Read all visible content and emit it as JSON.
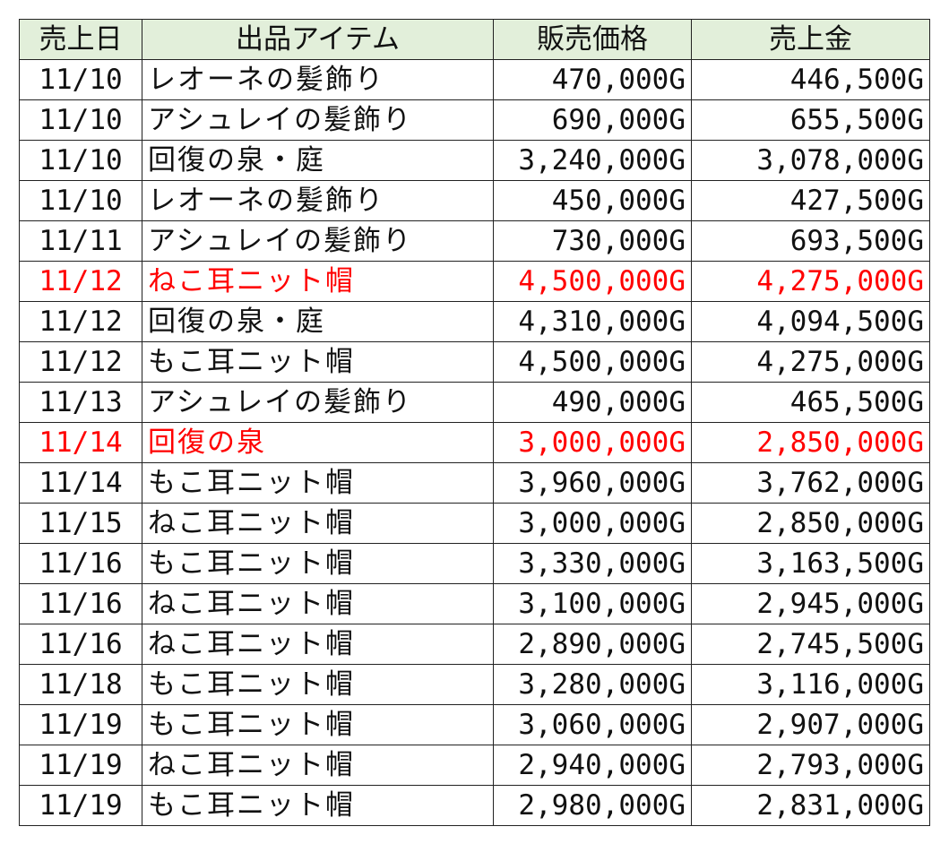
{
  "table": {
    "headers": [
      "売上日",
      "出品アイテム",
      "販売価格",
      "売上金"
    ],
    "highlight_color": "#ff0000",
    "header_bg": "#e2efda",
    "rows": [
      {
        "date": "11/10",
        "item": "レオーネの髪飾り",
        "price": "470,000G",
        "sales": "446,500G",
        "highlight": false
      },
      {
        "date": "11/10",
        "item": "アシュレイの髪飾り",
        "price": "690,000G",
        "sales": "655,500G",
        "highlight": false
      },
      {
        "date": "11/10",
        "item": "回復の泉・庭",
        "price": "3,240,000G",
        "sales": "3,078,000G",
        "highlight": false
      },
      {
        "date": "11/10",
        "item": "レオーネの髪飾り",
        "price": "450,000G",
        "sales": "427,500G",
        "highlight": false
      },
      {
        "date": "11/11",
        "item": "アシュレイの髪飾り",
        "price": "730,000G",
        "sales": "693,500G",
        "highlight": false
      },
      {
        "date": "11/12",
        "item": "ねこ耳ニット帽",
        "price": "4,500,000G",
        "sales": "4,275,000G",
        "highlight": true
      },
      {
        "date": "11/12",
        "item": "回復の泉・庭",
        "price": "4,310,000G",
        "sales": "4,094,500G",
        "highlight": false
      },
      {
        "date": "11/12",
        "item": "もこ耳ニット帽",
        "price": "4,500,000G",
        "sales": "4,275,000G",
        "highlight": false
      },
      {
        "date": "11/13",
        "item": "アシュレイの髪飾り",
        "price": "490,000G",
        "sales": "465,500G",
        "highlight": false
      },
      {
        "date": "11/14",
        "item": "回復の泉",
        "price": "3,000,000G",
        "sales": "2,850,000G",
        "highlight": true
      },
      {
        "date": "11/14",
        "item": "もこ耳ニット帽",
        "price": "3,960,000G",
        "sales": "3,762,000G",
        "highlight": false
      },
      {
        "date": "11/15",
        "item": "ねこ耳ニット帽",
        "price": "3,000,000G",
        "sales": "2,850,000G",
        "highlight": false
      },
      {
        "date": "11/16",
        "item": "もこ耳ニット帽",
        "price": "3,330,000G",
        "sales": "3,163,500G",
        "highlight": false
      },
      {
        "date": "11/16",
        "item": "ねこ耳ニット帽",
        "price": "3,100,000G",
        "sales": "2,945,000G",
        "highlight": false
      },
      {
        "date": "11/16",
        "item": "ねこ耳ニット帽",
        "price": "2,890,000G",
        "sales": "2,745,500G",
        "highlight": false
      },
      {
        "date": "11/18",
        "item": "もこ耳ニット帽",
        "price": "3,280,000G",
        "sales": "3,116,000G",
        "highlight": false
      },
      {
        "date": "11/19",
        "item": "もこ耳ニット帽",
        "price": "3,060,000G",
        "sales": "2,907,000G",
        "highlight": false
      },
      {
        "date": "11/19",
        "item": "ねこ耳ニット帽",
        "price": "2,940,000G",
        "sales": "2,793,000G",
        "highlight": false
      },
      {
        "date": "11/19",
        "item": "もこ耳ニット帽",
        "price": "2,980,000G",
        "sales": "2,831,000G",
        "highlight": false
      }
    ]
  }
}
